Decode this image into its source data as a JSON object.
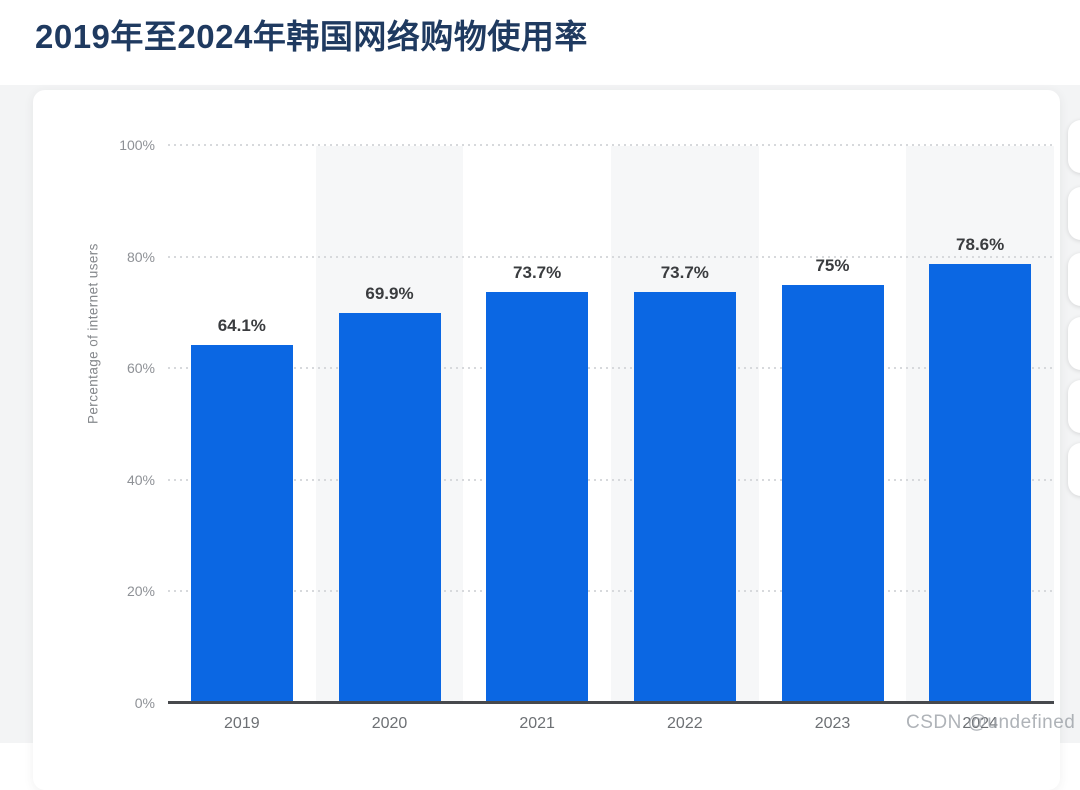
{
  "page": {
    "title": "2019年至2024年韩国网络购物使用率",
    "watermark_text": "CSDN @undefined"
  },
  "chart_data": {
    "type": "bar",
    "title": "2019年至2024年韩国网络购物使用率",
    "categories": [
      "2019",
      "2020",
      "2021",
      "2022",
      "2023",
      "2024"
    ],
    "values": [
      64.1,
      69.9,
      73.7,
      73.7,
      75,
      78.6
    ],
    "value_labels": [
      "64.1%",
      "69.9%",
      "73.7%",
      "73.7%",
      "75%",
      "78.6%"
    ],
    "xlabel": "",
    "ylabel": "Percentage of internet users",
    "ylim": [
      0,
      100
    ],
    "yticks": [
      0,
      20,
      40,
      60,
      80,
      100
    ],
    "ytick_labels": [
      "0%",
      "20%",
      "40%",
      "60%",
      "80%",
      "100%"
    ],
    "legend": "none",
    "grid": "horizontal-dotted",
    "bar_color": "#0b67e3",
    "axis_line_color": "#47494d",
    "shaded_columns": [
      "2020",
      "2022",
      "2024"
    ],
    "shaded_column_color": "#f6f7f8"
  },
  "floating_toolbar": {
    "button_count": 6
  }
}
